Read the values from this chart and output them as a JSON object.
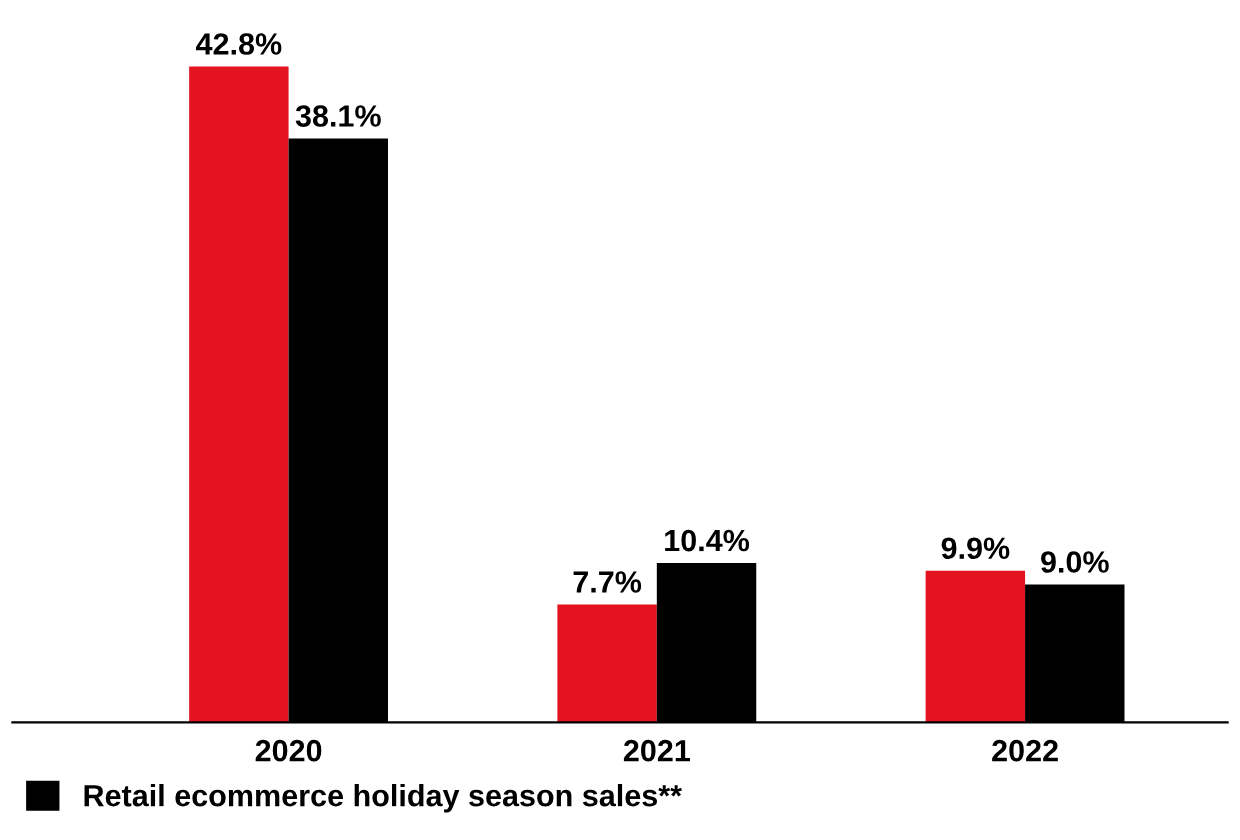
{
  "chart_data": {
    "type": "bar",
    "categories": [
      "2020",
      "2021",
      "2022"
    ],
    "series": [
      {
        "color": "#e3141f",
        "values": [
          42.8,
          7.7,
          9.9
        ],
        "value_labels": [
          "42.8%",
          "7.7%",
          "9.9%"
        ]
      },
      {
        "name": "Retail ecommerce holiday season sales**",
        "color": "#000000",
        "values": [
          38.1,
          10.4,
          9.0
        ],
        "value_labels": [
          "38.1%",
          "10.4%",
          "9.0%"
        ]
      }
    ],
    "legend": "bottom left",
    "grid": false
  }
}
